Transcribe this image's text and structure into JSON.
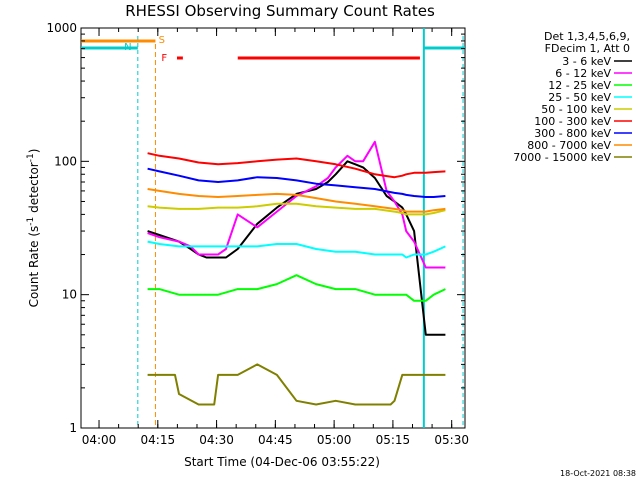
{
  "chart_data": {
    "type": "line",
    "title": "RHESSI Observing Summary Count Rates",
    "xlabel": "Start Time (04-Dec-06 03:55:22)",
    "ylabel_parts": [
      "Count Rate (s",
      "-1",
      " detector",
      "-1",
      ")"
    ],
    "ylim": [
      1,
      1000
    ],
    "yscale": "log",
    "xlim_minutes": [
      0,
      98
    ],
    "x_ticks": [
      {
        "label": "04:00",
        "m": 4.6
      },
      {
        "label": "04:15",
        "m": 19.6
      },
      {
        "label": "04:30",
        "m": 34.6
      },
      {
        "label": "04:45",
        "m": 49.6
      },
      {
        "label": "05:00",
        "m": 64.6
      },
      {
        "label": "05:15",
        "m": 79.6
      },
      {
        "label": "05:30",
        "m": 94.6
      }
    ],
    "y_ticks": [
      {
        "label": "1",
        "v": 1
      },
      {
        "label": "10",
        "v": 10
      },
      {
        "label": "100",
        "v": 100
      },
      {
        "label": "1000",
        "v": 1000
      }
    ],
    "legend_header": [
      "Det 1,3,4,5,6,9,",
      "FDecim 1, Att 0"
    ],
    "legend_position": "right",
    "series": [
      {
        "name": "3 - 6 keV",
        "color": "#000000",
        "x": [
          17,
          20,
          25,
          28,
          30,
          32,
          35,
          37,
          40,
          45,
          50,
          55,
          60,
          63,
          65,
          68,
          70,
          72,
          75,
          78,
          80,
          82,
          83,
          85,
          88,
          90,
          92,
          93
        ],
        "y": [
          30,
          28,
          25,
          22,
          20,
          19,
          19,
          19,
          22,
          34,
          45,
          57,
          62,
          70,
          80,
          100,
          95,
          90,
          75,
          55,
          50,
          45,
          40,
          30,
          5,
          5,
          5,
          5
        ]
      },
      {
        "name": "6 - 12 keV",
        "color": "#ff00ff",
        "x": [
          17,
          20,
          25,
          28,
          30,
          32,
          35,
          37,
          40,
          45,
          50,
          55,
          60,
          63,
          65,
          68,
          70,
          72,
          75,
          78,
          80,
          82,
          83,
          85,
          88,
          90,
          92,
          93
        ],
        "y": [
          29,
          27,
          25,
          23,
          20,
          20,
          20,
          22,
          40,
          32,
          42,
          55,
          65,
          75,
          90,
          110,
          100,
          100,
          140,
          60,
          50,
          40,
          30,
          25,
          16,
          16,
          16,
          16
        ]
      },
      {
        "name": "12 - 25 keV",
        "color": "#00ff00",
        "x": [
          17,
          20,
          25,
          30,
          35,
          40,
          45,
          50,
          55,
          60,
          65,
          70,
          75,
          80,
          82,
          83,
          85,
          88,
          90,
          93
        ],
        "y": [
          11,
          11,
          10,
          10,
          10,
          11,
          11,
          12,
          14,
          12,
          11,
          11,
          10,
          10,
          10,
          10,
          9,
          9,
          10,
          11
        ]
      },
      {
        "name": "25 - 50 keV",
        "color": "#00ffff",
        "x": [
          17,
          20,
          25,
          30,
          35,
          40,
          45,
          50,
          55,
          60,
          65,
          70,
          75,
          80,
          82,
          83,
          85,
          88,
          90,
          93
        ],
        "y": [
          25,
          24,
          23,
          23,
          23,
          23,
          23,
          24,
          24,
          22,
          21,
          21,
          20,
          20,
          20,
          19,
          20,
          20,
          21,
          23
        ]
      },
      {
        "name": "50 - 100 keV",
        "color": "#cccc00",
        "x": [
          17,
          20,
          25,
          30,
          35,
          40,
          45,
          50,
          55,
          60,
          65,
          70,
          75,
          80,
          82,
          83,
          85,
          88,
          90,
          93
        ],
        "y": [
          46,
          45,
          44,
          44,
          45,
          45,
          46,
          48,
          48,
          46,
          45,
          44,
          44,
          42,
          41,
          40,
          40,
          40,
          41,
          43
        ]
      },
      {
        "name": "100 - 300 keV",
        "color": "#ff0000",
        "x": [
          17,
          20,
          25,
          30,
          35,
          40,
          45,
          50,
          55,
          60,
          65,
          70,
          75,
          80,
          82,
          83,
          85,
          88,
          90,
          93
        ],
        "y": [
          115,
          110,
          105,
          98,
          95,
          97,
          100,
          103,
          105,
          100,
          95,
          88,
          80,
          76,
          78,
          80,
          82,
          82,
          83,
          84
        ]
      },
      {
        "name": "300 - 800 keV",
        "color": "#0000ff",
        "x": [
          17,
          20,
          25,
          30,
          35,
          40,
          45,
          50,
          55,
          60,
          65,
          70,
          75,
          80,
          82,
          83,
          85,
          88,
          90,
          93
        ],
        "y": [
          88,
          84,
          78,
          72,
          70,
          72,
          76,
          75,
          72,
          68,
          66,
          64,
          62,
          58,
          57,
          56,
          55,
          54,
          54,
          55
        ]
      },
      {
        "name": "800 - 7000 keV",
        "color": "#ff8c00",
        "x": [
          17,
          20,
          25,
          30,
          35,
          40,
          45,
          50,
          55,
          60,
          65,
          70,
          75,
          80,
          82,
          83,
          85,
          88,
          90,
          93
        ],
        "y": [
          62,
          60,
          57,
          55,
          54,
          55,
          56,
          57,
          56,
          53,
          50,
          48,
          46,
          44,
          43,
          42,
          42,
          42,
          43,
          44
        ]
      },
      {
        "name": "7000 - 15000 keV",
        "color": "#808000",
        "x": [
          17,
          20,
          24,
          25,
          30,
          34,
          35,
          40,
          45,
          50,
          55,
          60,
          65,
          70,
          75,
          79,
          80,
          82,
          85,
          88,
          90,
          93
        ],
        "y": [
          2.5,
          2.5,
          2.5,
          1.8,
          1.5,
          1.5,
          2.5,
          2.5,
          3,
          2.5,
          1.6,
          1.5,
          1.6,
          1.5,
          1.5,
          1.5,
          1.6,
          2.5,
          2.5,
          2.5,
          2.5,
          2.5
        ]
      }
    ],
    "annotations": [
      {
        "label": "N",
        "color": "#00cccc"
      },
      {
        "label": "S",
        "color": "#ff8c00"
      },
      {
        "label": "F",
        "color": "#ff0000"
      }
    ],
    "timestamp": "18-Oct-2021 08:38"
  }
}
